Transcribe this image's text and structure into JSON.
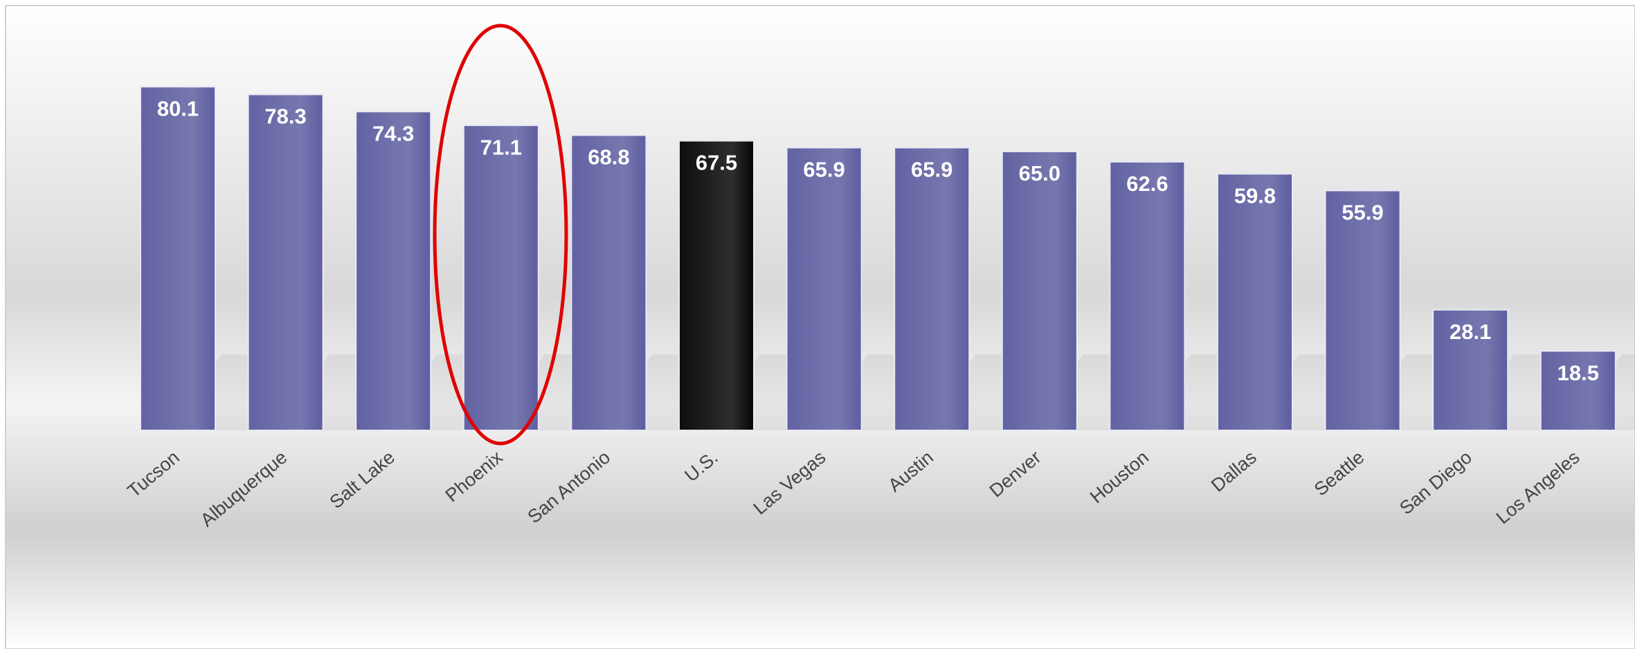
{
  "chart_data": {
    "type": "bar",
    "categories": [
      "Tucson",
      "Albuquerque",
      "Salt Lake",
      "Phoenix",
      "San Antonio",
      "U.S.",
      "Las Vegas",
      "Austin",
      "Denver",
      "Houston",
      "Dallas",
      "Seattle",
      "San Diego",
      "Los Angeles"
    ],
    "values": [
      80.1,
      78.3,
      74.3,
      71.1,
      68.8,
      67.5,
      65.9,
      65.9,
      65.0,
      62.6,
      59.8,
      55.9,
      28.1,
      18.5
    ],
    "value_labels": [
      "80.1",
      "78.3",
      "74.3",
      "71.1",
      "68.8",
      "67.5",
      "65.9",
      "65.9",
      "65.0",
      "62.6",
      "59.8",
      "55.9",
      "28.1",
      "18.5"
    ],
    "colors": [
      "#5a5a9e",
      "#5a5a9e",
      "#5a5a9e",
      "#5a5a9e",
      "#5a5a9e",
      "#000000",
      "#5a5a9e",
      "#5a5a9e",
      "#5a5a9e",
      "#5a5a9e",
      "#5a5a9e",
      "#5a5a9e",
      "#5a5a9e",
      "#5a5a9e"
    ]
  }
}
